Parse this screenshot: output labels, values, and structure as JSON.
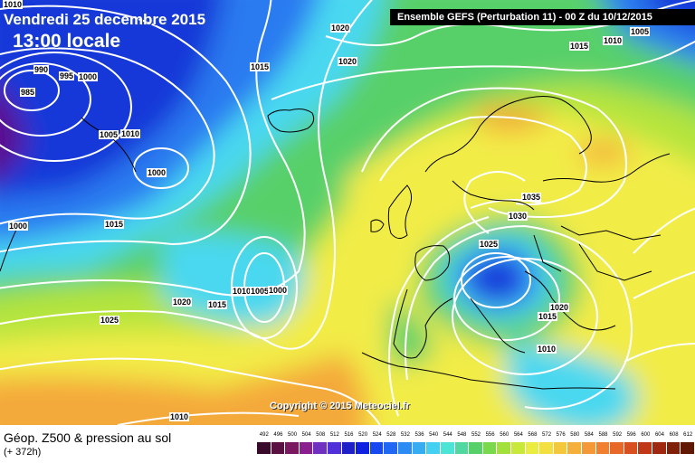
{
  "header": {
    "date_text": "Vendredi 25 decembre 2015",
    "time_text": "13:00 locale",
    "run_info": "Ensemble GEFS  (Perturbation 11)  -  00 Z du 10/12/2015"
  },
  "map": {
    "copyright": "Copyright © 2015 Meteociel.fr",
    "pressure_labels": [
      "1010",
      "1020",
      "1005",
      "1015",
      "1010",
      "1015",
      "1020",
      "990",
      "995",
      "1000",
      "985",
      "1005",
      "1010",
      "1000",
      "1000",
      "1015",
      "1035",
      "1030",
      "1025",
      "1010",
      "1005",
      "1000",
      "1020",
      "1015",
      "1025",
      "1015",
      "1020",
      "1010",
      "1010"
    ],
    "colors": {
      "deep_low": "#5a1090",
      "blue_dark": "#1438d8",
      "blue": "#2a7af0",
      "cyan": "#4ad8f0",
      "green": "#58d06a",
      "lime": "#b4e43c",
      "yellow": "#f2ec46",
      "orange": "#f4a93a",
      "isobar": "#ffffff",
      "coast": "#000000"
    }
  },
  "legend": {
    "title": "Géop. Z500 & pression au sol",
    "subtitle": "(+ 372h)",
    "scale_values": [
      "492",
      "496",
      "500",
      "504",
      "508",
      "512",
      "516",
      "520",
      "524",
      "528",
      "532",
      "536",
      "540",
      "544",
      "548",
      "552",
      "556",
      "560",
      "564",
      "568",
      "572",
      "576",
      "580",
      "584",
      "588",
      "592",
      "596",
      "600",
      "604",
      "608",
      "612"
    ],
    "scale_colors": [
      "#3a0a2a",
      "#5a1040",
      "#7a1860",
      "#8a2090",
      "#7030c0",
      "#5030d8",
      "#2020c8",
      "#1020e0",
      "#1848f0",
      "#2068f4",
      "#2c8cf4",
      "#38acf0",
      "#44d0f0",
      "#4ce4d4",
      "#50d8a0",
      "#58d06a",
      "#7ad84c",
      "#a4e03c",
      "#c8e83c",
      "#eaec40",
      "#f2e040",
      "#f4c83c",
      "#f4b03a",
      "#f49838",
      "#f08030",
      "#e86828",
      "#d85020",
      "#c03818",
      "#a02810",
      "#802008",
      "#601800"
    ]
  }
}
